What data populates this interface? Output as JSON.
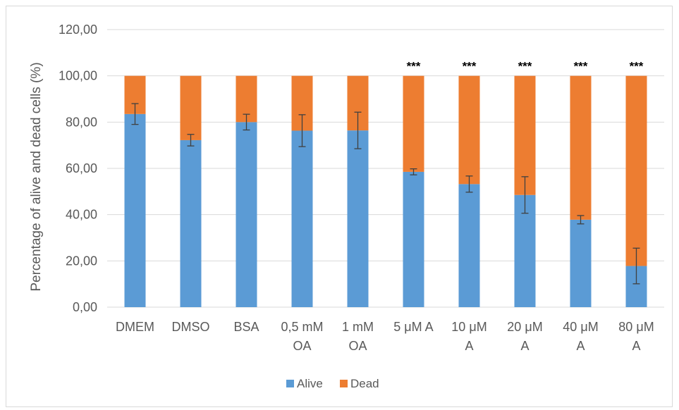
{
  "chart_data": {
    "type": "bar",
    "stacked": true,
    "ylabel": "Percentage of alive and dead cells (%)",
    "xlabel": "",
    "ylim": [
      0,
      120
    ],
    "yticks": [
      "0,00",
      "20,00",
      "40,00",
      "60,00",
      "80,00",
      "100,00",
      "120,00"
    ],
    "ytick_values": [
      0,
      20,
      40,
      60,
      80,
      100,
      120
    ],
    "grid": true,
    "legend_position": "bottom",
    "categories": [
      [
        "DMEM"
      ],
      [
        "DMSO"
      ],
      [
        "BSA"
      ],
      [
        "0,5 mM",
        "OA"
      ],
      [
        "1 mM",
        "OA"
      ],
      [
        "5 μM A"
      ],
      [
        "10 μM",
        "A"
      ],
      [
        "20 μM",
        "A"
      ],
      [
        "40 μM",
        "A"
      ],
      [
        "80 μM",
        "A"
      ]
    ],
    "series": [
      {
        "name": "Alive",
        "color": "#5b9bd5",
        "values": [
          83.5,
          72.2,
          80.0,
          76.3,
          76.4,
          58.5,
          53.2,
          48.5,
          37.8,
          17.8
        ],
        "errors": [
          4.5,
          2.5,
          3.4,
          6.9,
          7.9,
          1.3,
          3.5,
          7.9,
          1.8,
          7.7
        ]
      },
      {
        "name": "Dead",
        "color": "#ed7d31",
        "values": [
          16.5,
          27.8,
          20.0,
          23.7,
          23.6,
          41.5,
          46.8,
          51.5,
          62.2,
          82.2
        ]
      }
    ],
    "annotations": [
      "",
      "",
      "",
      "",
      "",
      "***",
      "***",
      "***",
      "***",
      "***"
    ],
    "gridline_color": "#d9d9d9",
    "errorbar_color": "#404040"
  }
}
